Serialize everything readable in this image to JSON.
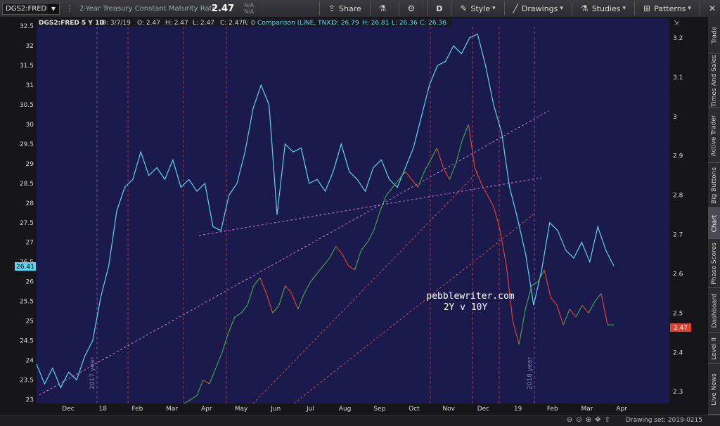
{
  "toolbar": {
    "symbol": "DGS2:FRED",
    "description": "2-Year Treasury Constant Maturity Rate",
    "price": "2.47",
    "change_top": "N/A",
    "change_bottom": "N/A",
    "share_label": "Share",
    "aggregation_label": "D",
    "style_label": "Style",
    "drawings_label": "Drawings",
    "studies_label": "Studies",
    "patterns_label": "Patterns"
  },
  "chart_header": {
    "symbol_text": "DGS2:FRED 5 Y 1D",
    "date": "D: 3/7/19",
    "open": "O: 2.47",
    "high": "H: 2.47",
    "low": "L: 2.47",
    "close": "C: 2.47",
    "r": "R: 0",
    "comparison_label": "Comparison (LINE, TNX)",
    "cmp_open": "O: 26.79",
    "cmp_high": "H: 26.81",
    "cmp_low": "L: 26.36",
    "cmp_close": "C: 26.36"
  },
  "watermark": {
    "line1": "pebblewriter.com",
    "line2": "2Y v 10Y"
  },
  "right_tabs": [
    "Trade",
    "Times And Sales",
    "Active Trader",
    "Big Buttons",
    "Chart",
    "Phase Scores",
    "Dashboard",
    "Level II",
    "Live News"
  ],
  "status": {
    "drawing_set": "Drawing set: 2019-0215"
  },
  "colors": {
    "background": "#1a1a4c",
    "comparison_line": "#5fd4ec",
    "price_up": "#3fa34a",
    "price_down": "#e0402e",
    "trendline_magenta": "#c77ad8",
    "trendline_red": "#d64a4a",
    "vline_red": "#b73030",
    "vline_purple": "#7a4aa0"
  },
  "chart_data": {
    "type": "line",
    "left_axis": {
      "label": "",
      "ticks": [
        "23",
        "23.5",
        "24",
        "24.5",
        "25",
        "25.5",
        "26",
        "26.5",
        "27",
        "27.5",
        "28",
        "28.5",
        "29",
        "29.5",
        "30",
        "30.5",
        "31",
        "31.5",
        "32",
        "32.5"
      ],
      "ylim": [
        22.9,
        32.7
      ],
      "current_value_label": "26.41"
    },
    "right_axis": {
      "label": "",
      "ticks": [
        "2.3",
        "2.4",
        "2.5",
        "2.6",
        "2.7",
        "2.8",
        "2.9",
        "3",
        "3.1",
        "3.2"
      ],
      "ylim": [
        2.27,
        3.25
      ],
      "current_value_label": "2.47"
    },
    "x_ticks": [
      "Dec",
      "18",
      "Feb",
      "Mar",
      "Apr",
      "May",
      "Jun",
      "Jul",
      "Aug",
      "Sep",
      "Oct",
      "Nov",
      "Dec",
      "19",
      "Feb",
      "Mar",
      "Apr"
    ],
    "vertical_markers": [
      {
        "label": "2017 year",
        "color": "purple"
      },
      {
        "label": "2018 year",
        "color": "purple"
      }
    ],
    "series": [
      {
        "name": "TNX",
        "axis": "left",
        "color": "#5fd4ec",
        "values": [
          23.9,
          23.4,
          23.8,
          23.3,
          23.7,
          23.5,
          24.1,
          24.5,
          25.6,
          26.4,
          27.8,
          28.4,
          28.6,
          29.3,
          28.7,
          28.9,
          28.6,
          29.1,
          28.4,
          28.6,
          28.3,
          28.5,
          27.4,
          27.3,
          28.2,
          28.5,
          29.3,
          30.4,
          31.0,
          30.5,
          27.7,
          29.5,
          29.3,
          29.4,
          28.5,
          28.6,
          28.3,
          28.8,
          29.5,
          28.8,
          28.6,
          28.3,
          28.9,
          29.1,
          28.6,
          28.4,
          28.9,
          29.4,
          30.2,
          31.0,
          31.5,
          31.6,
          32.0,
          31.8,
          32.2,
          32.3,
          31.5,
          30.5,
          29.8,
          28.4,
          27.6,
          26.7,
          25.4,
          26.3,
          27.5,
          27.3,
          26.8,
          26.6,
          27.0,
          26.5,
          27.4,
          26.8,
          26.4
        ]
      },
      {
        "name": "DGS2",
        "axis": "right",
        "color": "#3fa34a",
        "values": [
          2.27,
          2.28,
          2.29,
          2.33,
          2.32,
          2.36,
          2.4,
          2.45,
          2.49,
          2.5,
          2.52,
          2.57,
          2.59,
          2.55,
          2.5,
          2.52,
          2.57,
          2.55,
          2.51,
          2.55,
          2.58,
          2.6,
          2.62,
          2.64,
          2.67,
          2.65,
          2.62,
          2.61,
          2.66,
          2.68,
          2.71,
          2.76,
          2.8,
          2.82,
          2.84,
          2.86,
          2.84,
          2.82,
          2.86,
          2.89,
          2.92,
          2.87,
          2.84,
          2.88,
          2.94,
          2.98,
          2.87,
          2.83,
          2.8,
          2.77,
          2.71,
          2.62,
          2.48,
          2.42,
          2.51,
          2.57,
          2.58,
          2.61,
          2.54,
          2.52,
          2.47,
          2.51,
          2.49,
          2.52,
          2.5,
          2.53,
          2.55,
          2.47,
          2.47
        ]
      }
    ],
    "annotations": [
      "pebblewriter.com",
      "2Y v 10Y"
    ]
  }
}
